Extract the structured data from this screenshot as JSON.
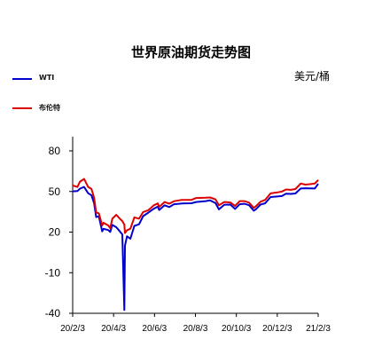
{
  "chart_data": {
    "type": "line",
    "title": "世界原油期货走势图",
    "unit": "美元/桶",
    "grid": false,
    "legend_placement": "top-left",
    "ylim": [
      -40,
      80
    ],
    "y_ticks": [
      "80",
      "50",
      "20",
      "-10",
      "-40"
    ],
    "x_ticks": [
      "20/2/3",
      "20/4/3",
      "20/6/3",
      "20/8/3",
      "20/10/3",
      "20/12/3",
      "21/2/3"
    ],
    "series": [
      {
        "name": "WTI",
        "color": "#0000cc",
        "points": [
          [
            "2020-02-03",
            50.1
          ],
          [
            "2020-02-10",
            50.3
          ],
          [
            "2020-02-14",
            52.1
          ],
          [
            "2020-02-20",
            53.4
          ],
          [
            "2020-02-26",
            48.7
          ],
          [
            "2020-03-02",
            47.2
          ],
          [
            "2020-03-06",
            41.3
          ],
          [
            "2020-03-09",
            31.1
          ],
          [
            "2020-03-13",
            31.7
          ],
          [
            "2020-03-18",
            20.5
          ],
          [
            "2020-03-20",
            22.4
          ],
          [
            "2020-03-27",
            21.5
          ],
          [
            "2020-03-30",
            20.1
          ],
          [
            "2020-04-02",
            25.3
          ],
          [
            "2020-04-08",
            23.6
          ],
          [
            "2020-04-14",
            20.1
          ],
          [
            "2020-04-17",
            18.3
          ],
          [
            "2020-04-20",
            -37.6
          ],
          [
            "2020-04-21",
            10.0
          ],
          [
            "2020-04-24",
            16.9
          ],
          [
            "2020-04-29",
            15.1
          ],
          [
            "2020-05-05",
            24.6
          ],
          [
            "2020-05-12",
            25.8
          ],
          [
            "2020-05-18",
            31.8
          ],
          [
            "2020-05-26",
            34.4
          ],
          [
            "2020-06-03",
            37.3
          ],
          [
            "2020-06-09",
            38.9
          ],
          [
            "2020-06-11",
            36.3
          ],
          [
            "2020-06-19",
            39.8
          ],
          [
            "2020-06-26",
            38.5
          ],
          [
            "2020-07-03",
            40.6
          ],
          [
            "2020-07-15",
            41.2
          ],
          [
            "2020-07-29",
            41.3
          ],
          [
            "2020-08-05",
            42.2
          ],
          [
            "2020-08-19",
            42.9
          ],
          [
            "2020-08-26",
            43.4
          ],
          [
            "2020-09-03",
            41.4
          ],
          [
            "2020-09-08",
            36.8
          ],
          [
            "2020-09-16",
            40.2
          ],
          [
            "2020-09-25",
            40.3
          ],
          [
            "2020-10-02",
            37.1
          ],
          [
            "2020-10-09",
            40.6
          ],
          [
            "2020-10-16",
            40.9
          ],
          [
            "2020-10-23",
            39.9
          ],
          [
            "2020-10-30",
            35.8
          ],
          [
            "2020-11-02",
            36.8
          ],
          [
            "2020-11-09",
            40.3
          ],
          [
            "2020-11-16",
            41.3
          ],
          [
            "2020-11-24",
            45.9
          ],
          [
            "2020-12-04",
            46.3
          ],
          [
            "2020-12-11",
            46.6
          ],
          [
            "2020-12-17",
            48.4
          ],
          [
            "2020-12-24",
            48.2
          ],
          [
            "2020-12-31",
            48.5
          ],
          [
            "2021-01-08",
            52.2
          ],
          [
            "2021-01-15",
            52.4
          ],
          [
            "2021-01-22",
            52.3
          ],
          [
            "2021-01-29",
            52.2
          ],
          [
            "2021-02-03",
            55.7
          ]
        ]
      },
      {
        "name": "布伦特",
        "color": "#dd0000",
        "points": [
          [
            "2020-02-03",
            54.5
          ],
          [
            "2020-02-10",
            53.3
          ],
          [
            "2020-02-14",
            57.3
          ],
          [
            "2020-02-20",
            59.3
          ],
          [
            "2020-02-26",
            53.4
          ],
          [
            "2020-03-02",
            51.9
          ],
          [
            "2020-03-06",
            45.3
          ],
          [
            "2020-03-09",
            34.4
          ],
          [
            "2020-03-13",
            33.9
          ],
          [
            "2020-03-18",
            24.9
          ],
          [
            "2020-03-20",
            26.9
          ],
          [
            "2020-03-27",
            24.9
          ],
          [
            "2020-03-30",
            22.8
          ],
          [
            "2020-04-02",
            29.9
          ],
          [
            "2020-04-08",
            32.8
          ],
          [
            "2020-04-14",
            29.6
          ],
          [
            "2020-04-17",
            28.1
          ],
          [
            "2020-04-20",
            25.6
          ],
          [
            "2020-04-21",
            19.3
          ],
          [
            "2020-04-24",
            21.4
          ],
          [
            "2020-04-29",
            22.5
          ],
          [
            "2020-05-05",
            30.9
          ],
          [
            "2020-05-12",
            29.9
          ],
          [
            "2020-05-18",
            34.8
          ],
          [
            "2020-05-26",
            36.2
          ],
          [
            "2020-06-03",
            39.8
          ],
          [
            "2020-06-09",
            41.2
          ],
          [
            "2020-06-11",
            38.6
          ],
          [
            "2020-06-19",
            42.2
          ],
          [
            "2020-06-26",
            41.0
          ],
          [
            "2020-07-03",
            42.8
          ],
          [
            "2020-07-15",
            43.8
          ],
          [
            "2020-07-29",
            43.8
          ],
          [
            "2020-08-05",
            45.2
          ],
          [
            "2020-08-19",
            45.4
          ],
          [
            "2020-08-26",
            45.6
          ],
          [
            "2020-09-03",
            44.1
          ],
          [
            "2020-09-08",
            39.8
          ],
          [
            "2020-09-16",
            42.2
          ],
          [
            "2020-09-25",
            41.9
          ],
          [
            "2020-10-02",
            39.3
          ],
          [
            "2020-10-09",
            42.9
          ],
          [
            "2020-10-16",
            42.9
          ],
          [
            "2020-10-23",
            41.8
          ],
          [
            "2020-10-30",
            37.9
          ],
          [
            "2020-11-02",
            39.0
          ],
          [
            "2020-11-09",
            42.4
          ],
          [
            "2020-11-16",
            43.8
          ],
          [
            "2020-11-24",
            48.6
          ],
          [
            "2020-12-04",
            49.3
          ],
          [
            "2020-12-11",
            50.0
          ],
          [
            "2020-12-17",
            51.5
          ],
          [
            "2020-12-24",
            51.2
          ],
          [
            "2020-12-31",
            51.8
          ],
          [
            "2021-01-08",
            55.9
          ],
          [
            "2021-01-15",
            55.1
          ],
          [
            "2021-01-22",
            55.4
          ],
          [
            "2021-01-29",
            55.9
          ],
          [
            "2021-02-03",
            58.5
          ]
        ]
      }
    ]
  }
}
